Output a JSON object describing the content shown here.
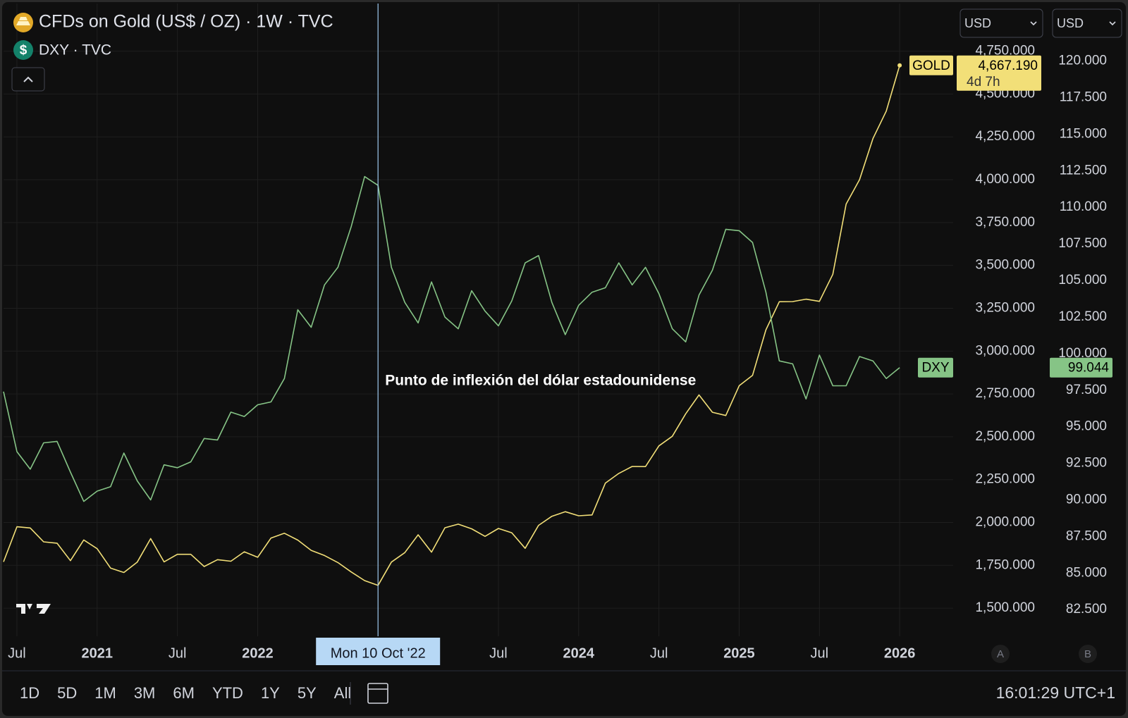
{
  "chart_data": {
    "type": "line",
    "title": "CFDs on Gold (US$ / OZ) · 1W · TVC",
    "subtitle": "DXY · TVC",
    "annotation": "Punto de inflexión del dólar estadounidense",
    "crosshair": {
      "x": "2022-10",
      "label": "Mon 10 Oct '22"
    },
    "countdown": "4d 7h",
    "x": [
      "2020-06",
      "2020-07",
      "2020-08",
      "2020-09",
      "2020-10",
      "2020-11",
      "2020-12",
      "2021-01",
      "2021-02",
      "2021-03",
      "2021-04",
      "2021-05",
      "2021-06",
      "2021-07",
      "2021-08",
      "2021-09",
      "2021-10",
      "2021-11",
      "2021-12",
      "2022-01",
      "2022-02",
      "2022-03",
      "2022-04",
      "2022-05",
      "2022-06",
      "2022-07",
      "2022-08",
      "2022-09",
      "2022-10",
      "2022-11",
      "2022-12",
      "2023-01",
      "2023-02",
      "2023-03",
      "2023-04",
      "2023-05",
      "2023-06",
      "2023-07",
      "2023-08",
      "2023-09",
      "2023-10",
      "2023-11",
      "2023-12",
      "2024-01",
      "2024-02",
      "2024-03",
      "2024-04",
      "2024-05",
      "2024-06",
      "2024-07",
      "2024-08",
      "2024-09",
      "2024-10",
      "2024-11",
      "2024-12",
      "2025-01",
      "2025-02",
      "2025-03",
      "2025-04",
      "2025-05",
      "2025-06",
      "2025-07",
      "2025-08",
      "2025-09",
      "2025-10",
      "2025-11",
      "2025-12",
      "2026-01"
    ],
    "series": [
      {
        "name": "GOLD",
        "color": "#f2df78",
        "last_label": "4,667.190",
        "values": [
          1770,
          1975,
          1968,
          1887,
          1879,
          1777,
          1898,
          1847,
          1734,
          1708,
          1769,
          1906,
          1770,
          1814,
          1814,
          1743,
          1783,
          1774,
          1829,
          1797,
          1909,
          1937,
          1897,
          1837,
          1807,
          1766,
          1711,
          1661,
          1633,
          1769,
          1824,
          1928,
          1827,
          1969,
          1990,
          1963,
          1919,
          1965,
          1940,
          1849,
          1983,
          2036,
          2063,
          2039,
          2044,
          2230,
          2286,
          2327,
          2326,
          2447,
          2503,
          2634,
          2744,
          2643,
          2624,
          2798,
          2858,
          3124,
          3288,
          3289,
          3303,
          3290,
          3448,
          3858,
          4000,
          4240,
          4400,
          4667.19
        ]
      },
      {
        "name": "DXY",
        "color": "#86c486",
        "axis": "y2",
        "last_label": "99.044",
        "values": [
          97.4,
          93.3,
          92.1,
          93.9,
          94.0,
          91.9,
          89.9,
          90.6,
          90.9,
          93.2,
          91.3,
          90.0,
          92.4,
          92.2,
          92.6,
          94.2,
          94.1,
          96.0,
          95.7,
          96.5,
          96.7,
          98.3,
          103.0,
          101.8,
          104.7,
          105.9,
          108.7,
          112.1,
          111.5,
          105.9,
          103.5,
          102.1,
          104.9,
          102.5,
          101.7,
          104.3,
          102.9,
          101.9,
          103.6,
          106.2,
          106.7,
          103.5,
          101.3,
          103.3,
          104.2,
          104.5,
          106.2,
          104.7,
          105.9,
          104.1,
          101.7,
          100.8,
          104.0,
          105.7,
          108.5,
          108.4,
          107.6,
          104.2,
          99.5,
          99.3,
          96.9,
          99.9,
          97.8,
          97.8,
          99.8,
          99.5,
          98.3,
          99.044
        ]
      }
    ],
    "xlim": [
      "2020-06",
      "2026-05"
    ],
    "xticks": [
      {
        "value": "2020-07",
        "label": "Jul"
      },
      {
        "value": "2021-01",
        "label": "2021"
      },
      {
        "value": "2021-07",
        "label": "Jul"
      },
      {
        "value": "2022-01",
        "label": "2022"
      },
      {
        "value": "2023-07",
        "label": "Jul"
      },
      {
        "value": "2024-01",
        "label": "2024"
      },
      {
        "value": "2024-07",
        "label": "Jul"
      },
      {
        "value": "2025-01",
        "label": "2025"
      },
      {
        "value": "2025-07",
        "label": "Jul"
      },
      {
        "value": "2026-01",
        "label": "2026"
      }
    ],
    "ylim": [
      1336,
      5028
    ],
    "yticks": [
      {
        "value": 1500,
        "label": "1,500.000"
      },
      {
        "value": 1750,
        "label": "1,750.000"
      },
      {
        "value": 2000,
        "label": "2,000.000"
      },
      {
        "value": 2250,
        "label": "2,250.000"
      },
      {
        "value": 2500,
        "label": "2,500.000"
      },
      {
        "value": 2750,
        "label": "2,750.000"
      },
      {
        "value": 3000,
        "label": "3,000.000"
      },
      {
        "value": 3250,
        "label": "3,250.000"
      },
      {
        "value": 3500,
        "label": "3,500.000"
      },
      {
        "value": 3750,
        "label": "3,750.000"
      },
      {
        "value": 4000,
        "label": "4,000.000"
      },
      {
        "value": 4250,
        "label": "4,250.000"
      },
      {
        "value": 4500,
        "label": "4,500.000"
      },
      {
        "value": 4750,
        "label": "4,750.000"
      }
    ],
    "y2lim": [
      80.68,
      123.93
    ],
    "y2ticks": [
      {
        "value": 82.5,
        "label": "82.500"
      },
      {
        "value": 85,
        "label": "85.000"
      },
      {
        "value": 87.5,
        "label": "87.500"
      },
      {
        "value": 90,
        "label": "90.000"
      },
      {
        "value": 92.5,
        "label": "92.500"
      },
      {
        "value": 95,
        "label": "95.000"
      },
      {
        "value": 97.5,
        "label": "97.500"
      },
      {
        "value": 100,
        "label": "100.000"
      },
      {
        "value": 102.5,
        "label": "102.500"
      },
      {
        "value": 105,
        "label": "105.000"
      },
      {
        "value": 107.5,
        "label": "107.500"
      },
      {
        "value": 110,
        "label": "110.000"
      },
      {
        "value": 112.5,
        "label": "112.500"
      },
      {
        "value": 115,
        "label": "115.000"
      },
      {
        "value": 117.5,
        "label": "117.500"
      },
      {
        "value": 120,
        "label": "120.000"
      }
    ],
    "grid": true
  },
  "toolbar": {
    "ranges": [
      "1D",
      "5D",
      "1M",
      "3M",
      "6M",
      "YTD",
      "1Y",
      "5Y",
      "All"
    ],
    "clock": "16:01:29 UTC+1"
  },
  "currency": [
    "USD",
    "USD"
  ],
  "scale_modes": [
    "A",
    "B"
  ]
}
